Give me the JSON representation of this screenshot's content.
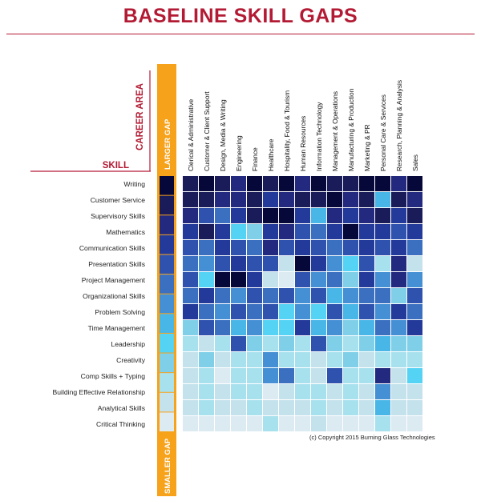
{
  "title": "BASELINE SKILL GAPS",
  "footer": "(c) Copyright 2015 Burning Glass Technologies",
  "colors": {
    "title": "#b31b34",
    "accent_line": "#b31b34",
    "orange_bar": "#f7a21b",
    "palette": [
      "#07083a",
      "#1a1c5a",
      "#22297e",
      "#243a9a",
      "#2e52ad",
      "#3b70c1",
      "#4590d4",
      "#49b6e8",
      "#55d3f5",
      "#7fcfe8",
      "#a8e1ee",
      "#c4e2ec",
      "#dceaf2"
    ]
  },
  "chart_data": {
    "type": "heatmap",
    "title": "BASELINE SKILL GAPS",
    "x_axis_title": "CAREER AREA",
    "y_axis_title": "SKILL",
    "scale_top_label": "LARGER GAP",
    "scale_bottom_label": "SMALLER GAP",
    "x_categories": [
      "Clerical & Administrative",
      "Customer & Client Support",
      "Design, Media & Writing",
      "Engineering",
      "Finance",
      "Healthcare",
      "Hospitality, Food & Tourism",
      "Human Resources",
      "Information Technology",
      "Management & Operations",
      "Manufacturing & Production",
      "Marketing & PR",
      "Personal Care & Services",
      "Research, Planning & Analysis",
      "Sales"
    ],
    "y_categories": [
      "Writing",
      "Customer Service",
      "Supervisory Skills",
      "Mathematics",
      "Communication Skills",
      "Presentation Skills",
      "Project Management",
      "Organizational Skills",
      "Problem Solving",
      "Time Management",
      "Leadership",
      "Creativity",
      "Comp Skills + Typing",
      "Building Effective Relationship",
      "Analytical Skills",
      "Critical Thinking"
    ],
    "scale_levels": 13,
    "values": [
      [
        1,
        0,
        1,
        2,
        0,
        1,
        0,
        2,
        0,
        1,
        1,
        0,
        0,
        2,
        0
      ],
      [
        1,
        1,
        2,
        2,
        1,
        3,
        2,
        1,
        1,
        0,
        2,
        1,
        7,
        1,
        2
      ],
      [
        2,
        4,
        5,
        3,
        1,
        0,
        0,
        3,
        7,
        2,
        3,
        2,
        1,
        3,
        1
      ],
      [
        3,
        1,
        3,
        8,
        9,
        3,
        2,
        4,
        5,
        3,
        0,
        3,
        3,
        4,
        3
      ],
      [
        4,
        5,
        3,
        4,
        5,
        2,
        4,
        3,
        4,
        5,
        4,
        3,
        4,
        3,
        5
      ],
      [
        5,
        6,
        4,
        3,
        4,
        4,
        11,
        0,
        3,
        6,
        8,
        4,
        10,
        2,
        11
      ],
      [
        4,
        8,
        0,
        0,
        3,
        11,
        12,
        4,
        6,
        5,
        9,
        3,
        6,
        2,
        6
      ],
      [
        5,
        3,
        5,
        6,
        4,
        5,
        4,
        6,
        4,
        7,
        6,
        5,
        5,
        9,
        4
      ],
      [
        3,
        5,
        6,
        4,
        5,
        4,
        8,
        6,
        8,
        4,
        7,
        4,
        6,
        3,
        5
      ],
      [
        9,
        4,
        5,
        7,
        6,
        8,
        8,
        3,
        7,
        6,
        9,
        7,
        5,
        6,
        3
      ],
      [
        10,
        11,
        10,
        4,
        9,
        10,
        9,
        10,
        4,
        9,
        10,
        9,
        7,
        9,
        9
      ],
      [
        11,
        9,
        11,
        10,
        10,
        6,
        10,
        10,
        11,
        10,
        9,
        11,
        10,
        10,
        10
      ],
      [
        11,
        10,
        12,
        10,
        10,
        6,
        5,
        10,
        11,
        4,
        10,
        10,
        2,
        11,
        8
      ],
      [
        11,
        10,
        11,
        10,
        10,
        12,
        11,
        10,
        10,
        11,
        10,
        11,
        6,
        11,
        11
      ],
      [
        11,
        10,
        11,
        11,
        10,
        11,
        11,
        11,
        10,
        11,
        10,
        11,
        7,
        11,
        11
      ],
      [
        12,
        12,
        12,
        12,
        12,
        10,
        12,
        12,
        11,
        12,
        12,
        12,
        10,
        12,
        12
      ]
    ]
  }
}
